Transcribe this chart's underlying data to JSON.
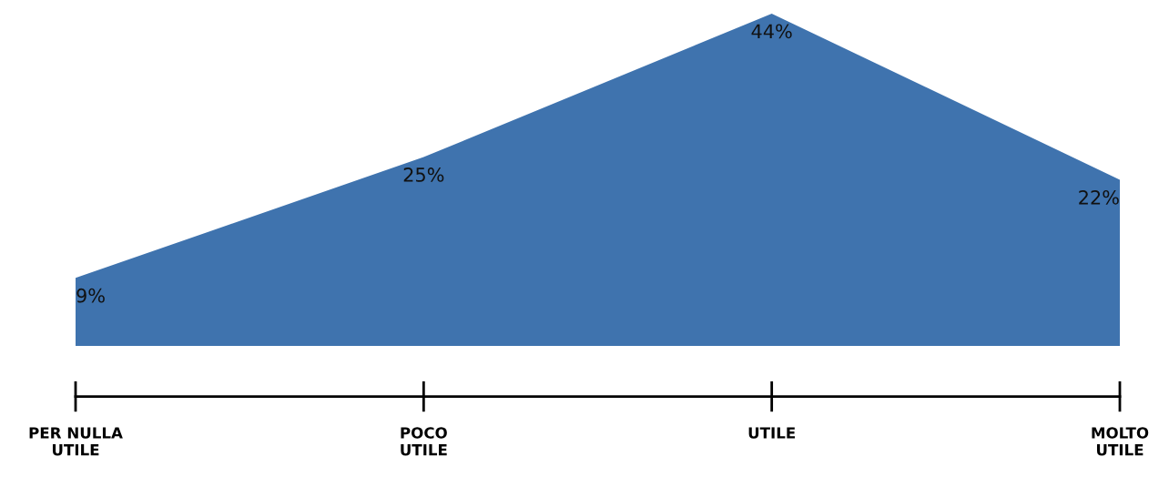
{
  "chart_data": {
    "type": "area",
    "categories": [
      "PER NULLA\nUTILE",
      "POCO\nUTILE",
      "UTILE",
      "MOLTO\nUTILE"
    ],
    "series": [
      {
        "color": "#3f73ae",
        "values": [
          9,
          25,
          44,
          22
        ],
        "value_labels": [
          "9%",
          "25%",
          "44%",
          "22%"
        ]
      }
    ],
    "tick_labels": "x",
    "grid": false,
    "legend": false
  }
}
